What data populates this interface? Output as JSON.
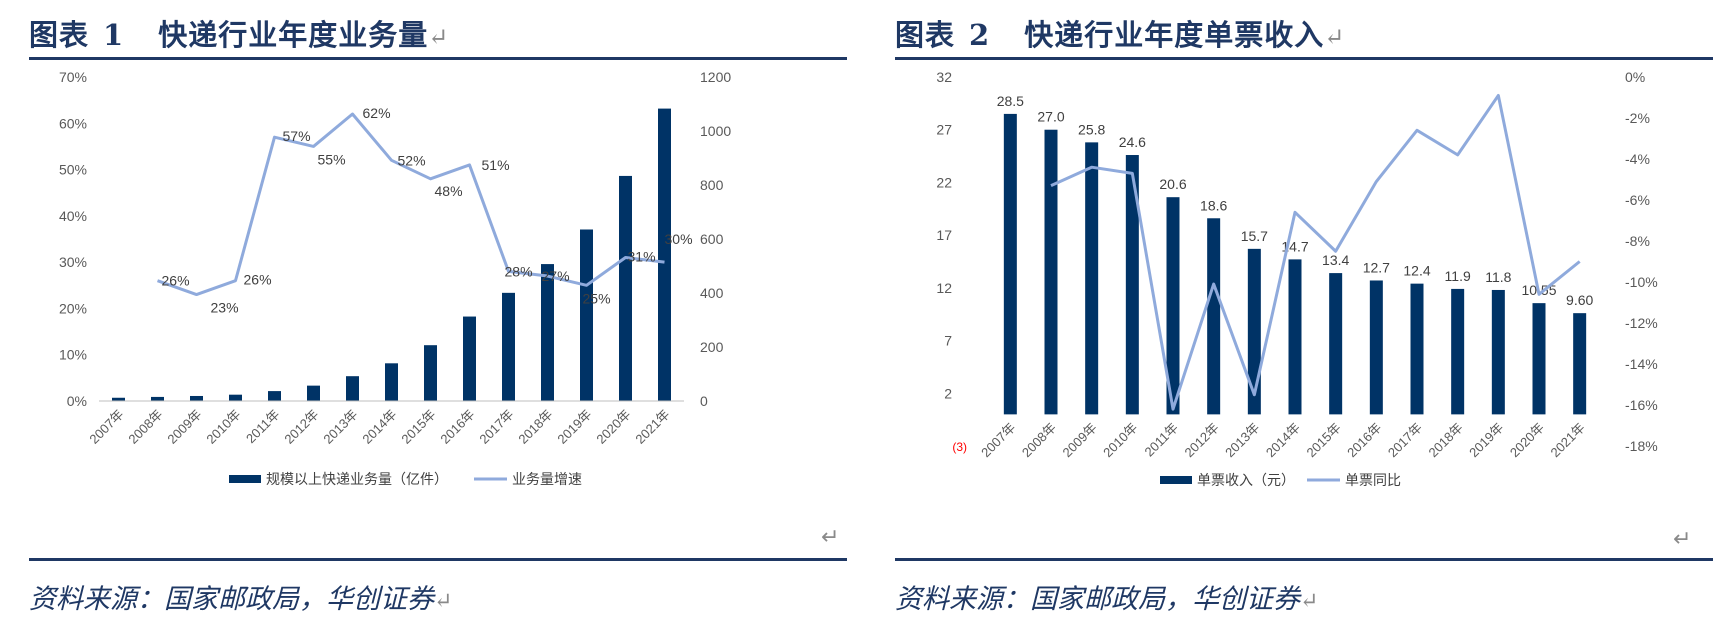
{
  "figures": [
    {
      "title_prefix": "图表",
      "title_num": "1",
      "title_text": "快递行业年度业务量",
      "return_mark": "↵",
      "source": "资料来源：国家邮政局，华创证券"
    },
    {
      "title_prefix": "图表",
      "title_num": "2",
      "title_text": "快递行业年度单票收入",
      "return_mark": "↵",
      "source": "资料来源：国家邮政局，华创证券"
    }
  ],
  "colors": {
    "bar": "#003366",
    "line": "#8FAADC",
    "title": "#1F3864",
    "axis_text": "#595959",
    "red_label": "#FF0000"
  },
  "chart_data": [
    {
      "type": "bar",
      "categories": [
        "2007年",
        "2008年",
        "2009年",
        "2010年",
        "2011年",
        "2012年",
        "2013年",
        "2014年",
        "2015年",
        "2016年",
        "2017年",
        "2018年",
        "2019年",
        "2020年",
        "2021年"
      ],
      "series": [
        {
          "name": "规模以上快递业务量（亿件）",
          "type": "bar",
          "axis": "right",
          "values": [
            12,
            15.1,
            18.6,
            23.4,
            36.7,
            56.9,
            91.9,
            139.6,
            206.7,
            312.8,
            400.6,
            507.1,
            635.2,
            833.6,
            1083
          ]
        },
        {
          "name": "业务量增速",
          "type": "line",
          "axis": "left",
          "values": [
            null,
            0.26,
            0.23,
            0.26,
            0.57,
            0.55,
            0.62,
            0.52,
            0.48,
            0.51,
            0.28,
            0.27,
            0.25,
            0.31,
            0.3
          ],
          "labels": [
            "",
            "26%",
            "23%",
            "26%",
            "57%",
            "55%",
            "62%",
            "52%",
            "48%",
            "51%",
            "28%",
            "27%",
            "25%",
            "31%",
            "30%"
          ]
        }
      ],
      "left_axis": {
        "ylim": [
          0,
          0.7
        ],
        "ticks": [
          "0%",
          "10%",
          "20%",
          "30%",
          "40%",
          "50%",
          "60%",
          "70%"
        ]
      },
      "right_axis": {
        "ylim": [
          0,
          1200
        ],
        "ticks": [
          "0",
          "200",
          "400",
          "600",
          "800",
          "1000",
          "1200"
        ]
      },
      "legend": {
        "position": "bottom"
      }
    },
    {
      "type": "bar",
      "categories": [
        "2007年",
        "2008年",
        "2009年",
        "2010年",
        "2011年",
        "2012年",
        "2013年",
        "2014年",
        "2015年",
        "2016年",
        "2017年",
        "2018年",
        "2019年",
        "2020年",
        "2021年"
      ],
      "series": [
        {
          "name": "单票收入（元）",
          "type": "bar",
          "axis": "left",
          "values": [
            28.5,
            27.0,
            25.8,
            24.6,
            20.6,
            18.6,
            15.7,
            14.7,
            13.4,
            12.7,
            12.4,
            11.9,
            11.8,
            10.55,
            9.6
          ],
          "labels": [
            "28.5",
            "27.0",
            "25.8",
            "24.6",
            "20.6",
            "18.6",
            "15.7",
            "14.7",
            "13.4",
            "12.7",
            "12.4",
            "11.9",
            "11.8",
            "10.55",
            "9.60"
          ]
        },
        {
          "name": "单票同比",
          "type": "line",
          "axis": "right",
          "values": [
            null,
            -0.053,
            -0.044,
            -0.047,
            -0.162,
            -0.101,
            -0.155,
            -0.066,
            -0.085,
            -0.051,
            -0.026,
            -0.038,
            -0.009,
            -0.106,
            -0.09
          ]
        }
      ],
      "left_axis": {
        "ylim": [
          -3,
          32
        ],
        "ticks": [
          "(3)",
          "2",
          "7",
          "12",
          "17",
          "22",
          "27",
          "32"
        ]
      },
      "right_axis": {
        "ylim": [
          -0.18,
          0
        ],
        "ticks": [
          "-18%",
          "-16%",
          "-14%",
          "-12%",
          "-10%",
          "-8%",
          "-6%",
          "-4%",
          "-2%",
          "0%"
        ]
      },
      "legend": {
        "position": "bottom"
      }
    }
  ]
}
